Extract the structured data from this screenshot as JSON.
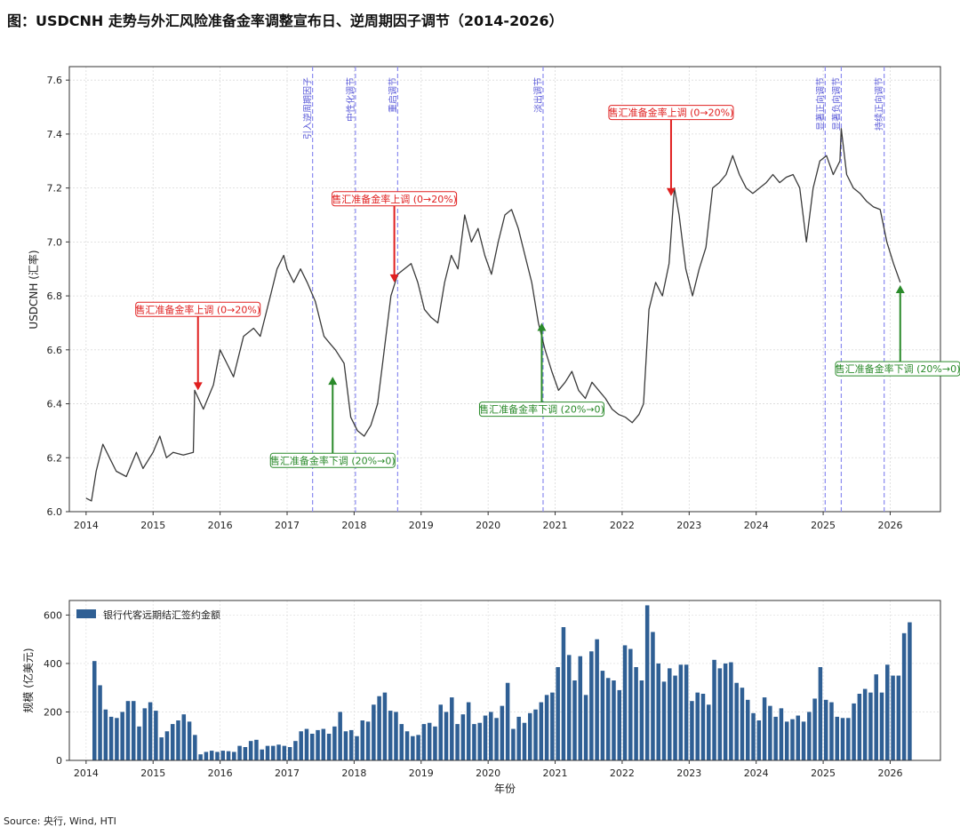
{
  "title": "图：USDCNH 走势与外汇风险准备金率调整宣布日、逆周期因子调节（2014-2026）",
  "source": "Source: 央行, Wind, HTI",
  "colors": {
    "line": "#3a3a3a",
    "bar": "#2f5f94",
    "red": "#e02020",
    "green": "#2a8a2a",
    "event": "#8a8af0"
  },
  "chart_data": [
    {
      "type": "line",
      "ylabel": "USDCNH (汇率)",
      "xlim": [
        2013.75,
        2026.75
      ],
      "ylim": [
        6.0,
        7.65
      ],
      "xticks": [
        2014,
        2015,
        2016,
        2017,
        2018,
        2019,
        2020,
        2021,
        2022,
        2023,
        2024,
        2025,
        2026
      ],
      "yticks": [
        6.0,
        6.2,
        6.4,
        6.6,
        6.8,
        7.0,
        7.2,
        7.4,
        7.6
      ],
      "grid": true,
      "series": [
        {
          "x": [
            2014.0,
            2014.08,
            2014.15,
            2014.25,
            2014.35,
            2014.45,
            2014.6,
            2014.75,
            2014.85,
            2015.0,
            2015.1,
            2015.2,
            2015.3,
            2015.45,
            2015.6,
            2015.62,
            2015.75,
            2015.9,
            2016.0,
            2016.1,
            2016.2,
            2016.35,
            2016.5,
            2016.6,
            2016.75,
            2016.85,
            2016.95,
            2017.0,
            2017.1,
            2017.2,
            2017.3,
            2017.42,
            2017.55,
            2017.65,
            2017.72,
            2017.85,
            2017.95,
            2018.05,
            2018.15,
            2018.25,
            2018.35,
            2018.45,
            2018.55,
            2018.65,
            2018.75,
            2018.85,
            2018.95,
            2019.05,
            2019.15,
            2019.25,
            2019.35,
            2019.45,
            2019.55,
            2019.65,
            2019.75,
            2019.85,
            2019.95,
            2020.05,
            2020.15,
            2020.25,
            2020.35,
            2020.45,
            2020.55,
            2020.65,
            2020.75,
            2020.85,
            2020.95,
            2021.05,
            2021.15,
            2021.25,
            2021.35,
            2021.45,
            2021.55,
            2021.65,
            2021.75,
            2021.85,
            2021.95,
            2022.05,
            2022.15,
            2022.25,
            2022.32,
            2022.4,
            2022.5,
            2022.6,
            2022.7,
            2022.78,
            2022.85,
            2022.95,
            2023.05,
            2023.15,
            2023.25,
            2023.35,
            2023.45,
            2023.55,
            2023.65,
            2023.75,
            2023.85,
            2023.95,
            2024.05,
            2024.15,
            2024.25,
            2024.35,
            2024.45,
            2024.55,
            2024.65,
            2024.75,
            2024.85,
            2024.95,
            2025.05,
            2025.15,
            2025.25,
            2025.27,
            2025.35,
            2025.45,
            2025.55,
            2025.65,
            2025.75,
            2025.85,
            2025.95,
            2026.05,
            2026.15
          ],
          "y": [
            6.05,
            6.04,
            6.15,
            6.25,
            6.2,
            6.15,
            6.13,
            6.22,
            6.16,
            6.22,
            6.28,
            6.2,
            6.22,
            6.21,
            6.22,
            6.45,
            6.38,
            6.47,
            6.6,
            6.55,
            6.5,
            6.65,
            6.68,
            6.65,
            6.8,
            6.9,
            6.95,
            6.9,
            6.85,
            6.9,
            6.85,
            6.78,
            6.65,
            6.62,
            6.6,
            6.55,
            6.35,
            6.3,
            6.28,
            6.32,
            6.4,
            6.6,
            6.8,
            6.88,
            6.9,
            6.92,
            6.85,
            6.75,
            6.72,
            6.7,
            6.85,
            6.95,
            6.9,
            7.1,
            7.0,
            7.05,
            6.95,
            6.88,
            7.0,
            7.1,
            7.12,
            7.05,
            6.95,
            6.85,
            6.7,
            6.6,
            6.52,
            6.45,
            6.48,
            6.52,
            6.45,
            6.42,
            6.48,
            6.45,
            6.42,
            6.38,
            6.36,
            6.35,
            6.33,
            6.36,
            6.4,
            6.75,
            6.85,
            6.8,
            6.92,
            7.2,
            7.1,
            6.9,
            6.8,
            6.9,
            6.98,
            7.2,
            7.22,
            7.25,
            7.32,
            7.25,
            7.2,
            7.18,
            7.2,
            7.22,
            7.25,
            7.22,
            7.24,
            7.25,
            7.2,
            7.0,
            7.2,
            7.3,
            7.32,
            7.25,
            7.3,
            7.42,
            7.25,
            7.2,
            7.18,
            7.15,
            7.13,
            7.12,
            7.0,
            6.92,
            6.85
          ]
        }
      ],
      "events": [
        {
          "x": 2017.38,
          "label": "引入逆周期因子"
        },
        {
          "x": 2018.02,
          "label": "中性化调节"
        },
        {
          "x": 2018.65,
          "label": "重启调节"
        },
        {
          "x": 2020.82,
          "label": "淡出调节"
        },
        {
          "x": 2025.03,
          "label": "显著正向调节"
        },
        {
          "x": 2025.27,
          "label": "显著负向调节"
        },
        {
          "x": 2025.91,
          "label": "持续正向调节"
        }
      ],
      "annotations": [
        {
          "text": "售汇准备金率上调 (0→20%)",
          "x": 2015.67,
          "y": 6.45,
          "tx": 2015.67,
          "ty": 6.75,
          "color": "red"
        },
        {
          "text": "售汇准备金率下调 (20%→0)",
          "x": 2017.68,
          "y": 6.5,
          "tx": 2017.68,
          "ty": 6.19,
          "color": "green"
        },
        {
          "text": "售汇准备金率上调 (0→20%)",
          "x": 2018.6,
          "y": 6.85,
          "tx": 2018.6,
          "ty": 7.16,
          "color": "red"
        },
        {
          "text": "售汇准备金率下调 (20%→0)",
          "x": 2020.8,
          "y": 6.7,
          "tx": 2020.8,
          "ty": 6.38,
          "color": "green"
        },
        {
          "text": "售汇准备金率上调 (0→20%)",
          "x": 2022.73,
          "y": 7.17,
          "tx": 2022.73,
          "ty": 7.48,
          "color": "red"
        },
        {
          "text": "售汇准备金率下调 (20%→0)",
          "x": 2026.15,
          "y": 6.84,
          "tx": 2026.15,
          "ty": 6.53,
          "color": "green"
        }
      ]
    },
    {
      "type": "bar",
      "xlabel": "年份",
      "ylabel": "规模 (亿美元)",
      "legend": "银行代客远期结汇签约金额",
      "legend_position": "top-left",
      "xlim": [
        2013.75,
        2026.75
      ],
      "ylim": [
        0,
        660
      ],
      "xticks": [
        2014,
        2015,
        2016,
        2017,
        2018,
        2019,
        2020,
        2021,
        2022,
        2023,
        2024,
        2025,
        2026
      ],
      "yticks": [
        0,
        200,
        400,
        600
      ],
      "grid": true,
      "start": 2014.125,
      "step": 0.08333,
      "values": [
        410,
        310,
        210,
        180,
        175,
        200,
        245,
        245,
        140,
        215,
        240,
        205,
        95,
        120,
        150,
        165,
        190,
        160,
        105,
        25,
        35,
        40,
        35,
        40,
        38,
        35,
        60,
        55,
        80,
        85,
        45,
        60,
        60,
        65,
        60,
        55,
        80,
        120,
        130,
        110,
        125,
        130,
        110,
        140,
        200,
        120,
        125,
        100,
        165,
        160,
        230,
        265,
        280,
        205,
        200,
        150,
        120,
        100,
        105,
        150,
        155,
        140,
        230,
        200,
        260,
        150,
        190,
        240,
        150,
        155,
        185,
        200,
        175,
        225,
        320,
        130,
        180,
        155,
        195,
        210,
        240,
        270,
        280,
        385,
        550,
        435,
        330,
        430,
        270,
        450,
        500,
        370,
        340,
        330,
        290,
        475,
        460,
        385,
        330,
        640,
        530,
        400,
        325,
        380,
        350,
        395,
        395,
        245,
        280,
        275,
        230,
        415,
        380,
        400,
        405,
        320,
        300,
        250,
        195,
        165,
        260,
        225,
        180,
        215,
        160,
        170,
        185,
        160,
        200,
        255,
        385,
        250,
        240,
        180,
        175,
        175,
        235,
        275,
        295,
        280,
        355,
        280,
        395,
        350,
        350,
        525,
        570
      ]
    }
  ]
}
